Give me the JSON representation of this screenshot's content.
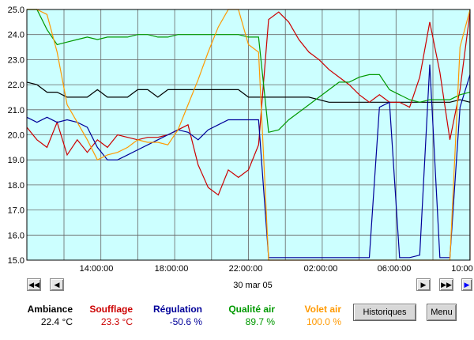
{
  "chart_data": {
    "type": "line",
    "ylim": [
      15.0,
      25.0
    ],
    "y_ticks": [
      "25.0",
      "24.0",
      "23.0",
      "22.0",
      "21.0",
      "20.0",
      "19.0",
      "18.0",
      "17.0",
      "16.0",
      "15.0"
    ],
    "x_ticks": [
      "14:00:00",
      "18:00:00",
      "22:00:00",
      "02:00:00",
      "06:00:00",
      "10:00"
    ],
    "grid": true,
    "background": "#ccffff",
    "series": [
      {
        "name": "Ambiance",
        "color": "#000000",
        "values": [
          22.1,
          22.0,
          21.7,
          21.7,
          21.5,
          21.5,
          21.5,
          21.8,
          21.5,
          21.5,
          21.5,
          21.8,
          21.8,
          21.5,
          21.8,
          21.8,
          21.8,
          21.8,
          21.8,
          21.8,
          21.8,
          21.8,
          21.5,
          21.5,
          21.5,
          21.5,
          21.5,
          21.5,
          21.5,
          21.4,
          21.3,
          21.3,
          21.3,
          21.3,
          21.3,
          21.3,
          21.3,
          21.3,
          21.3,
          21.3,
          21.3,
          21.3,
          21.3,
          21.4,
          21.3
        ]
      },
      {
        "name": "Soufflage",
        "color": "#cc0000",
        "values": [
          20.3,
          19.8,
          19.5,
          20.5,
          19.2,
          19.8,
          19.3,
          19.8,
          19.5,
          20.0,
          19.9,
          19.8,
          19.9,
          19.9,
          20.0,
          20.2,
          20.4,
          18.8,
          17.9,
          17.6,
          18.6,
          18.3,
          18.6,
          19.6,
          24.6,
          24.9,
          24.5,
          23.8,
          23.3,
          23.0,
          22.6,
          22.3,
          22.0,
          21.6,
          21.3,
          21.6,
          21.3,
          21.3,
          21.1,
          22.3,
          24.5,
          22.5,
          19.8,
          21.8,
          24.9
        ]
      },
      {
        "name": "Régulation",
        "color": "#000099",
        "values": [
          20.7,
          20.5,
          20.7,
          20.5,
          20.6,
          20.5,
          20.3,
          19.5,
          19.0,
          19.0,
          19.2,
          19.4,
          19.6,
          19.8,
          20.0,
          20.2,
          20.1,
          19.8,
          20.2,
          20.4,
          20.6,
          20.6,
          20.6,
          20.6,
          15.1,
          15.1,
          15.1,
          15.1,
          15.1,
          15.1,
          15.1,
          15.1,
          15.1,
          15.1,
          15.1,
          21.1,
          21.3,
          15.1,
          15.1,
          15.2,
          22.8,
          15.1,
          15.1,
          21.1,
          22.4
        ]
      },
      {
        "name": "Qualité air",
        "color": "#009900",
        "values": [
          25.0,
          25.0,
          24.2,
          23.6,
          23.7,
          23.8,
          23.9,
          23.8,
          23.9,
          23.9,
          23.9,
          24.0,
          24.0,
          23.9,
          23.9,
          24.0,
          24.0,
          24.0,
          24.0,
          24.0,
          24.0,
          24.0,
          23.9,
          23.9,
          20.1,
          20.2,
          20.6,
          20.9,
          21.2,
          21.5,
          21.8,
          22.1,
          22.1,
          22.3,
          22.4,
          22.4,
          21.8,
          21.6,
          21.4,
          21.3,
          21.4,
          21.4,
          21.4,
          21.6,
          21.7
        ]
      },
      {
        "name": "Volet air",
        "color": "#ff9900",
        "values": [
          25.0,
          25.0,
          24.8,
          23.3,
          21.2,
          20.5,
          19.8,
          19.0,
          19.2,
          19.3,
          19.5,
          19.8,
          19.7,
          19.7,
          19.6,
          20.2,
          21.2,
          22.2,
          23.3,
          24.3,
          25.0,
          25.0,
          23.6,
          23.3,
          15.0,
          15.0,
          15.0,
          15.0,
          15.0,
          15.0,
          15.0,
          15.0,
          15.0,
          15.0,
          15.0,
          15.0,
          15.0,
          15.0,
          15.0,
          15.0,
          15.0,
          15.0,
          15.0,
          23.5,
          25.0
        ]
      }
    ]
  },
  "nav": {
    "first_icon": "fast-rewind-icon",
    "prev_icon": "step-back-icon",
    "next_icon": "step-forward-icon",
    "last_icon": "fast-forward-icon"
  },
  "date_label": "30 mar 05",
  "legend": [
    {
      "name": "Ambiance",
      "value": "22.4 °C",
      "color": "#000000"
    },
    {
      "name": "Soufflage",
      "value": "23.3 °C",
      "color": "#cc0000"
    },
    {
      "name": "Régulation",
      "value": "-50.6 %",
      "color": "#000099"
    },
    {
      "name": "Qualité air",
      "value": "89.7 %",
      "color": "#009900"
    },
    {
      "name": "Volet air",
      "value": "100.0 %",
      "color": "#ff9900"
    }
  ],
  "buttons": {
    "history": "Historiques",
    "menu": "Menu"
  }
}
